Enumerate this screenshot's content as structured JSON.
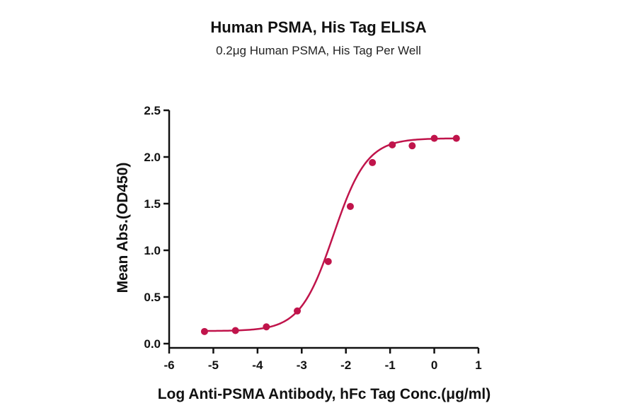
{
  "chart_data": {
    "type": "scatter",
    "title": "Human PSMA, His Tag ELISA",
    "subtitle": "0.2μg Human PSMA, His Tag Per Well",
    "xlabel": "Log Anti-PSMA Antibody, hFc Tag Conc.(μg/ml)",
    "ylabel": "Mean Abs.(OD450)",
    "xlim": [
      -6,
      1
    ],
    "ylim": [
      0,
      2.5
    ],
    "x_ticks": [
      "-6",
      "-5",
      "-4",
      "-3",
      "-2",
      "-1",
      "0",
      "1"
    ],
    "y_ticks": [
      "0.0",
      "0.5",
      "1.0",
      "1.5",
      "2.0",
      "2.5"
    ],
    "grid": false,
    "color": "#c0144b",
    "series": [
      {
        "x": [
          -5.2,
          -4.5,
          -3.8,
          -3.1,
          -2.4,
          -1.9,
          -1.4,
          -0.95,
          -0.5,
          0.0,
          0.5
        ],
        "y": [
          0.13,
          0.14,
          0.18,
          0.35,
          0.88,
          1.47,
          1.94,
          2.13,
          2.12,
          2.2,
          2.2
        ]
      }
    ],
    "fit": {
      "model": "4PL",
      "bottom": 0.135,
      "top": 2.2,
      "logEC50": -2.28,
      "hill": 1.15
    }
  }
}
